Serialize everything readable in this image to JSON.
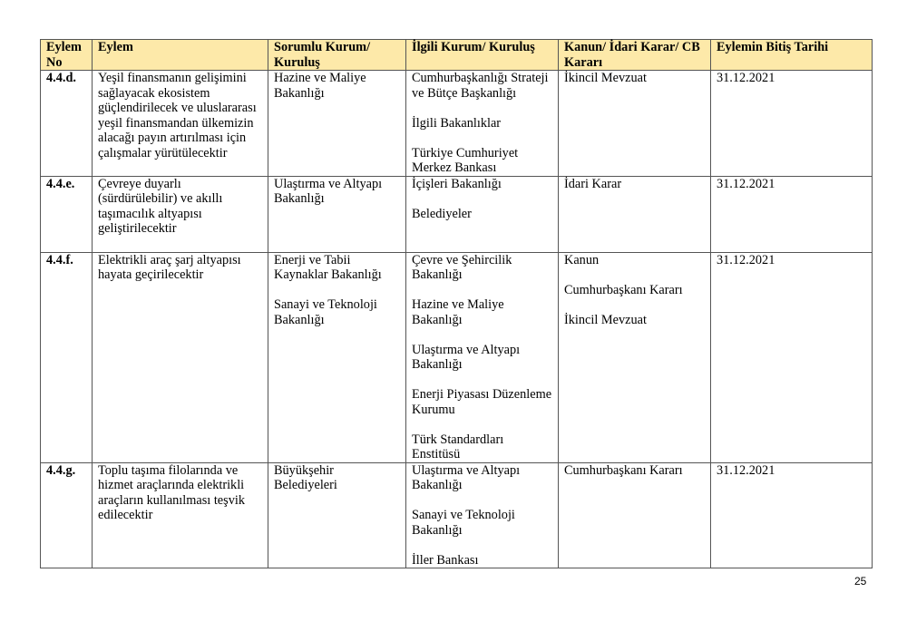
{
  "table": {
    "headers": [
      "Eylem No",
      "Eylem",
      "Sorumlu Kurum/ Kuruluş",
      "İlgili Kurum/ Kuruluş",
      "Kanun/ İdari Karar/ CB Kararı",
      "Eylemin Bitiş Tarihi"
    ],
    "rows": [
      {
        "no": "4.4.d.",
        "eylem": "Yeşil finansmanın gelişimini sağlayacak ekosistem güçlendirilecek ve uluslararası yeşil finansmandan ülkemizin alacağı payın artırılması için çalışmalar yürütülecektir",
        "sorumlu": [
          "Hazine ve Maliye Bakanlığı"
        ],
        "ilgili": [
          "Cumhurbaşkanlığı Strateji ve Bütçe Başkanlığı",
          "İlgili Bakanlıklar",
          "Türkiye Cumhuriyet Merkez Bankası"
        ],
        "kanun": [
          "İkincil Mevzuat"
        ],
        "tarih": "31.12.2021"
      },
      {
        "no": "4.4.e.",
        "eylem": "Çevreye duyarlı (sürdürülebilir) ve akıllı taşımacılık altyapısı geliştirilecektir",
        "sorumlu": [
          "Ulaştırma ve Altyapı Bakanlığı"
        ],
        "ilgili": [
          "İçişleri Bakanlığı",
          "Belediyeler"
        ],
        "kanun": [
          "İdari Karar"
        ],
        "tarih": "31.12.2021"
      },
      {
        "no": "4.4.f.",
        "eylem": "Elektrikli araç şarj altyapısı hayata geçirilecektir",
        "sorumlu": [
          "Enerji ve Tabii Kaynaklar Bakanlığı",
          "Sanayi ve Teknoloji Bakanlığı"
        ],
        "ilgili": [
          "Çevre ve Şehircilik Bakanlığı",
          "Hazine ve Maliye Bakanlığı",
          "Ulaştırma ve Altyapı Bakanlığı",
          "Enerji Piyasası Düzenleme Kurumu",
          "Türk Standardları Enstitüsü"
        ],
        "kanun": [
          "Kanun",
          "Cumhurbaşkanı Kararı",
          "İkincil Mevzuat"
        ],
        "tarih": "31.12.2021"
      },
      {
        "no": "4.4.g.",
        "eylem": "Toplu taşıma filolarında ve hizmet araçlarında elektrikli araçların kullanılması teşvik edilecektir",
        "sorumlu": [
          "Büyükşehir Belediyeleri"
        ],
        "ilgili": [
          "Ulaştırma ve Altyapı Bakanlığı",
          "Sanayi ve Teknoloji Bakanlığı",
          "İller Bankası"
        ],
        "kanun": [
          "Cumhurbaşkanı Kararı"
        ],
        "tarih": "31.12.2021"
      }
    ]
  },
  "page_number": "25",
  "colors": {
    "header_bg": "#fde9a9"
  }
}
